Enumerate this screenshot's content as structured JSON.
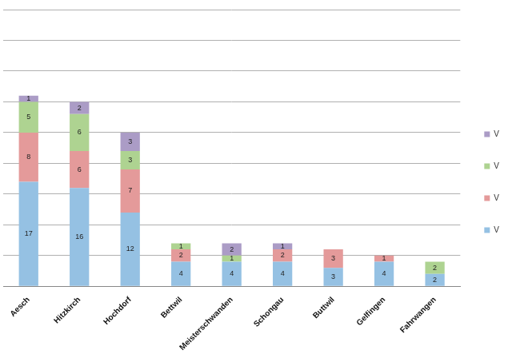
{
  "chart_data": {
    "type": "bar",
    "stacked": true,
    "data_labels": true,
    "legend": "right",
    "grid": true,
    "tick_labels": "x",
    "categories": [
      "Aesch",
      "Hitzkirch",
      "Hochdorf",
      "Bettwil",
      "Meisterschwanden",
      "Schongau",
      "Buttwil",
      "Gelfingen",
      "Fahrwangen"
    ],
    "ylim": [
      0,
      45
    ],
    "yticks": [
      0,
      5,
      10,
      15,
      20,
      25,
      30,
      35,
      40,
      45
    ],
    "series": [
      {
        "name": "V",
        "color": "#95c1e3",
        "values": [
          17,
          16,
          12,
          4,
          4,
          4,
          3,
          4,
          2
        ]
      },
      {
        "name": "V",
        "color": "#e49a9a",
        "values": [
          8,
          6,
          7,
          2,
          null,
          2,
          3,
          1,
          null
        ]
      },
      {
        "name": "V",
        "color": "#aed391",
        "values": [
          5,
          6,
          3,
          1,
          1,
          null,
          null,
          null,
          2
        ]
      },
      {
        "name": "V",
        "color": "#ab9cc6",
        "values": [
          1,
          2,
          3,
          null,
          2,
          1,
          null,
          null,
          null
        ]
      }
    ]
  }
}
